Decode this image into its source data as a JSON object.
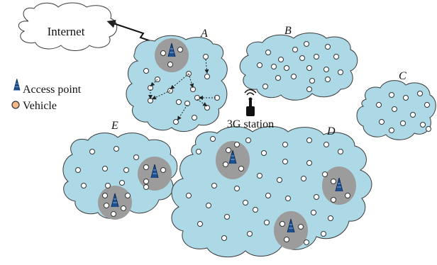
{
  "labels": {
    "internet": "Internet",
    "station": "3G station",
    "region_a": "A",
    "region_b": "B",
    "region_c": "C",
    "region_d": "D",
    "region_e": "E"
  },
  "legend": {
    "access_point": "Access point",
    "vehicle": "Vehicle"
  },
  "colors": {
    "cloud_fill": "#add8e6",
    "cloud_stroke": "#3a3a3a",
    "ap_zone": "#9c9c9c",
    "vehicle_fill": "#ffffff",
    "legend_vehicle_fill": "#f2b98c",
    "tower": "#1f4f8f"
  },
  "icons": [
    "access-point-tower-icon",
    "vehicle-node-icon",
    "3g-station-icon",
    "lightning-link-icon"
  ]
}
